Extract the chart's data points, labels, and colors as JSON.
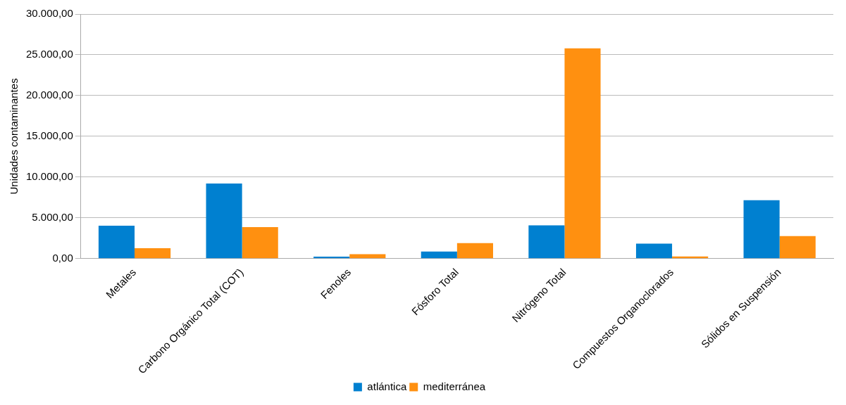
{
  "chart_data": {
    "type": "bar",
    "ylabel": "Unidades contaminantes",
    "categories": [
      "Metales",
      "Carbono Orgánico Total (COT)",
      "Fenoles",
      "Fósforo Total",
      "Nitrógeno Total",
      "Compuestos Organoclorados",
      "Sólidos en Suspensión"
    ],
    "series": [
      {
        "name": "atlántica",
        "color": "#0080d0",
        "values": [
          4040,
          9220,
          240,
          870,
          4080,
          1850,
          7170
        ]
      },
      {
        "name": "mediterránea",
        "color": "#ff9010",
        "values": [
          1280,
          3870,
          540,
          1900,
          25800,
          270,
          2770
        ]
      }
    ],
    "ylim": [
      0,
      30000
    ],
    "yticks": [
      {
        "value": 0,
        "label": "0,00"
      },
      {
        "value": 5000,
        "label": "5.000,00"
      },
      {
        "value": 10000,
        "label": "10.000,00"
      },
      {
        "value": 15000,
        "label": "15.000,00"
      },
      {
        "value": 20000,
        "label": "20.000,00"
      },
      {
        "value": 25000,
        "label": "25.000,00"
      },
      {
        "value": 30000,
        "label": "30.000,00"
      }
    ],
    "grid": "y",
    "legend": "bottom"
  }
}
